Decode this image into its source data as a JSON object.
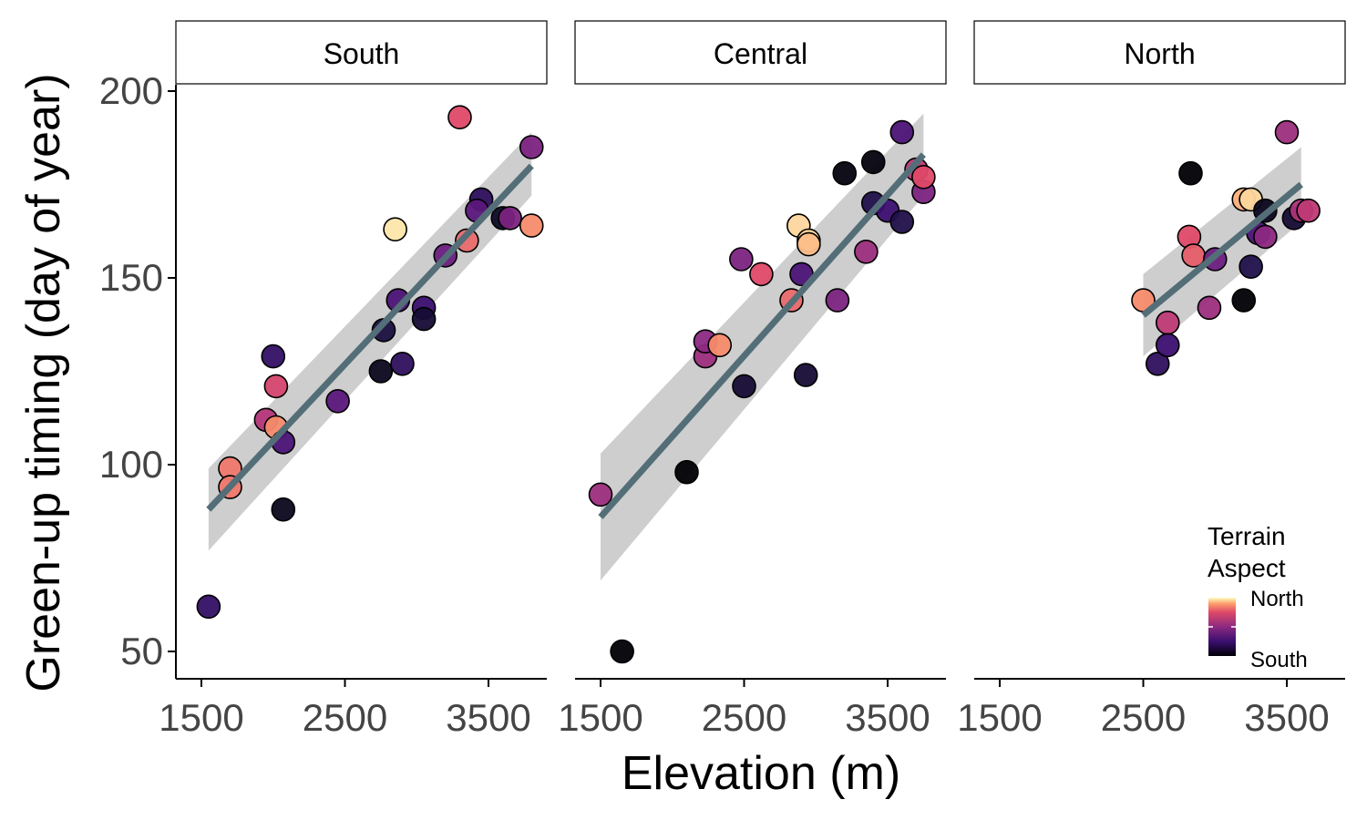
{
  "chart_data": {
    "type": "scatter",
    "xlabel": "Elevation (m)",
    "ylabel": "Green-up timing (day of year)",
    "xlim": [
      1400,
      3700
    ],
    "ylim": [
      43,
      218
    ],
    "x_ticks": [
      "1500",
      "2500",
      "3500"
    ],
    "y_ticks": [
      "50",
      "100",
      "150",
      "200"
    ],
    "grid": false,
    "legend": {
      "title_lines": [
        "Terrain",
        "Aspect"
      ],
      "low_label": "South",
      "high_label": "North",
      "position": "bottom-right",
      "colormap": "magma"
    },
    "panels": [
      {
        "name": "South",
        "fit": {
          "x": [
            1550,
            3800
          ],
          "y": [
            88,
            180
          ],
          "ci_lower": [
            77,
            172
          ],
          "ci_upper": [
            99,
            189
          ]
        },
        "points": [
          {
            "x": 1550,
            "y": 62,
            "aspect": 0.22
          },
          {
            "x": 1700,
            "y": 99,
            "aspect": 0.82
          },
          {
            "x": 1700,
            "y": 94,
            "aspect": 0.82
          },
          {
            "x": 1950,
            "y": 112,
            "aspect": 0.62
          },
          {
            "x": 2000,
            "y": 129,
            "aspect": 0.22
          },
          {
            "x": 2020,
            "y": 121,
            "aspect": 0.72
          },
          {
            "x": 2020,
            "y": 110,
            "aspect": 0.85
          },
          {
            "x": 2070,
            "y": 106,
            "aspect": 0.3
          },
          {
            "x": 2070,
            "y": 88,
            "aspect": 0.05
          },
          {
            "x": 2450,
            "y": 117,
            "aspect": 0.35
          },
          {
            "x": 2750,
            "y": 125,
            "aspect": 0.05
          },
          {
            "x": 2770,
            "y": 136,
            "aspect": 0.12
          },
          {
            "x": 2850,
            "y": 163,
            "aspect": 0.97
          },
          {
            "x": 2870,
            "y": 144,
            "aspect": 0.3
          },
          {
            "x": 2900,
            "y": 127,
            "aspect": 0.2
          },
          {
            "x": 3050,
            "y": 142,
            "aspect": 0.25
          },
          {
            "x": 3050,
            "y": 139,
            "aspect": 0.1
          },
          {
            "x": 3200,
            "y": 156,
            "aspect": 0.4
          },
          {
            "x": 3300,
            "y": 193,
            "aspect": 0.75
          },
          {
            "x": 3350,
            "y": 160,
            "aspect": 0.8
          },
          {
            "x": 3450,
            "y": 171,
            "aspect": 0.2
          },
          {
            "x": 3420,
            "y": 168,
            "aspect": 0.35
          },
          {
            "x": 3600,
            "y": 166,
            "aspect": 0.07
          },
          {
            "x": 3650,
            "y": 166,
            "aspect": 0.45
          },
          {
            "x": 3800,
            "y": 164,
            "aspect": 0.85
          },
          {
            "x": 3800,
            "y": 185,
            "aspect": 0.45
          }
        ]
      },
      {
        "name": "Central",
        "fit": {
          "x": [
            1500,
            3750
          ],
          "y": [
            86,
            183
          ],
          "ci_lower": [
            69,
            172
          ],
          "ci_upper": [
            103,
            194
          ]
        },
        "points": [
          {
            "x": 1500,
            "y": 92,
            "aspect": 0.55
          },
          {
            "x": 1650,
            "y": 50,
            "aspect": 0.0
          },
          {
            "x": 2100,
            "y": 98,
            "aspect": 0.0
          },
          {
            "x": 2230,
            "y": 129,
            "aspect": 0.55
          },
          {
            "x": 2230,
            "y": 133,
            "aspect": 0.5
          },
          {
            "x": 2330,
            "y": 132,
            "aspect": 0.85
          },
          {
            "x": 2480,
            "y": 155,
            "aspect": 0.45
          },
          {
            "x": 2500,
            "y": 121,
            "aspect": 0.1
          },
          {
            "x": 2620,
            "y": 151,
            "aspect": 0.75
          },
          {
            "x": 2830,
            "y": 144,
            "aspect": 0.8
          },
          {
            "x": 2880,
            "y": 164,
            "aspect": 0.95
          },
          {
            "x": 2900,
            "y": 151,
            "aspect": 0.3
          },
          {
            "x": 2930,
            "y": 124,
            "aspect": 0.1
          },
          {
            "x": 2950,
            "y": 160,
            "aspect": 0.95
          },
          {
            "x": 2950,
            "y": 159,
            "aspect": 0.92
          },
          {
            "x": 3150,
            "y": 144,
            "aspect": 0.45
          },
          {
            "x": 3200,
            "y": 178,
            "aspect": 0.02
          },
          {
            "x": 3350,
            "y": 157,
            "aspect": 0.55
          },
          {
            "x": 3400,
            "y": 181,
            "aspect": 0.02
          },
          {
            "x": 3400,
            "y": 170,
            "aspect": 0.15
          },
          {
            "x": 3500,
            "y": 168,
            "aspect": 0.25
          },
          {
            "x": 3600,
            "y": 165,
            "aspect": 0.15
          },
          {
            "x": 3600,
            "y": 189,
            "aspect": 0.3
          },
          {
            "x": 3700,
            "y": 179,
            "aspect": 0.65
          },
          {
            "x": 3750,
            "y": 173,
            "aspect": 0.45
          },
          {
            "x": 3750,
            "y": 177,
            "aspect": 0.75
          }
        ]
      },
      {
        "name": "North",
        "fit": {
          "x": [
            2500,
            3600
          ],
          "y": [
            140,
            175
          ],
          "ci_lower": [
            129,
            165
          ],
          "ci_upper": [
            151,
            185
          ]
        },
        "points": [
          {
            "x": 2500,
            "y": 144,
            "aspect": 0.85
          },
          {
            "x": 2600,
            "y": 127,
            "aspect": 0.2
          },
          {
            "x": 2670,
            "y": 138,
            "aspect": 0.65
          },
          {
            "x": 2670,
            "y": 132,
            "aspect": 0.25
          },
          {
            "x": 2820,
            "y": 161,
            "aspect": 0.75
          },
          {
            "x": 2830,
            "y": 178,
            "aspect": 0.0
          },
          {
            "x": 2850,
            "y": 156,
            "aspect": 0.78
          },
          {
            "x": 2960,
            "y": 142,
            "aspect": 0.55
          },
          {
            "x": 3000,
            "y": 155,
            "aspect": 0.4
          },
          {
            "x": 3200,
            "y": 171,
            "aspect": 0.9
          },
          {
            "x": 3200,
            "y": 144,
            "aspect": 0.0
          },
          {
            "x": 3250,
            "y": 171,
            "aspect": 0.95
          },
          {
            "x": 3250,
            "y": 153,
            "aspect": 0.15
          },
          {
            "x": 3300,
            "y": 162,
            "aspect": 0.3
          },
          {
            "x": 3350,
            "y": 161,
            "aspect": 0.5
          },
          {
            "x": 3350,
            "y": 168,
            "aspect": 0.05
          },
          {
            "x": 3500,
            "y": 189,
            "aspect": 0.55
          },
          {
            "x": 3550,
            "y": 166,
            "aspect": 0.1
          },
          {
            "x": 3600,
            "y": 168,
            "aspect": 0.6
          },
          {
            "x": 3650,
            "y": 168,
            "aspect": 0.65
          }
        ]
      }
    ]
  }
}
